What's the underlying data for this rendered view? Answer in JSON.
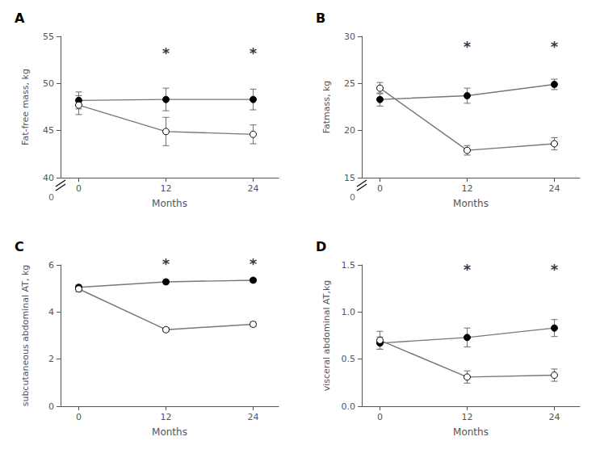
{
  "chart_data": [
    {
      "type": "line",
      "title": "A",
      "xlabel": "Months",
      "ylabel": "Fat-free mass, kg",
      "x": [
        0,
        12,
        24
      ],
      "xlim": [
        -2.5,
        27.5
      ],
      "xticks": [
        0,
        12,
        24
      ],
      "ylim": [
        40,
        55
      ],
      "yticks": [
        40,
        45,
        50,
        55
      ],
      "grid": false,
      "series": [
        {
          "color": "#777777",
          "marker": "filled_circle",
          "values": [
            48.2,
            48.3,
            48.3
          ],
          "errors": [
            0.9,
            1.2,
            1.1
          ]
        },
        {
          "color": "#777777",
          "marker": "open_circle",
          "values": [
            47.7,
            44.9,
            44.6
          ],
          "errors": [
            1.0,
            1.5,
            1.0
          ]
        }
      ],
      "annotations": [
        {
          "x": 12,
          "y": 52.5,
          "text": "*"
        },
        {
          "x": 24,
          "y": 52.5,
          "text": "*"
        },
        {
          "text": "0"
        }
      ]
    },
    {
      "type": "line",
      "title": "B",
      "xlabel": "Months",
      "ylabel": "Fatmass, kg",
      "x": [
        0,
        12,
        24
      ],
      "xlim": [
        -2.5,
        27.5
      ],
      "xticks": [
        0,
        12,
        24
      ],
      "ylim": [
        15,
        30
      ],
      "yticks": [
        15,
        20,
        25,
        30
      ],
      "grid": false,
      "series": [
        {
          "color": "#777777",
          "marker": "filled_circle",
          "values": [
            23.3,
            23.7,
            24.9
          ],
          "errors": [
            0.7,
            0.8,
            0.55
          ]
        },
        {
          "color": "#777777",
          "marker": "open_circle",
          "values": [
            24.5,
            17.9,
            18.6
          ],
          "errors": [
            0.6,
            0.5,
            0.65
          ]
        }
      ],
      "annotations": [
        {
          "x": 12,
          "y": 28.2,
          "text": "*"
        },
        {
          "x": 24,
          "y": 28.2,
          "text": "*"
        },
        {
          "text": "0"
        }
      ]
    },
    {
      "type": "line",
      "title": "C",
      "xlabel": "Months",
      "ylabel": "subcutaneous abdominal AT, kg",
      "x": [
        0,
        12,
        24
      ],
      "xlim": [
        -2.5,
        27.5
      ],
      "xticks": [
        0,
        12,
        24
      ],
      "ylim": [
        0.0,
        6.0
      ],
      "yticks": [
        0,
        2,
        4,
        6
      ],
      "grid": false,
      "series": [
        {
          "color": "#777777",
          "marker": "filled_circle",
          "values": [
            5.05,
            5.28,
            5.35
          ],
          "errors": [
            0.1,
            0.1,
            0.09
          ]
        },
        {
          "color": "#777777",
          "marker": "open_circle",
          "values": [
            4.98,
            3.25,
            3.48
          ],
          "errors": [
            0.12,
            0.09,
            0.1
          ]
        }
      ],
      "annotations": [
        {
          "x": 12,
          "y": 5.75,
          "text": "*"
        },
        {
          "x": 24,
          "y": 5.75,
          "text": "*"
        }
      ]
    },
    {
      "type": "line",
      "title": "D",
      "xlabel": "Months",
      "ylabel": "visceral abdominal AT,kg",
      "x": [
        0,
        12,
        24
      ],
      "xlim": [
        -2.5,
        27.5
      ],
      "xticks": [
        0,
        12,
        24
      ],
      "ylim": [
        0.0,
        1.5
      ],
      "yticks": [
        {
          "value": 0,
          "label": "0.0"
        },
        0.5,
        {
          "value": 1,
          "label": "1.0"
        },
        1.5
      ],
      "grid": false,
      "series": [
        {
          "color": "#777777",
          "marker": "filled_circle",
          "values": [
            0.67,
            0.73,
            0.83
          ],
          "errors": [
            0.065,
            0.1,
            0.09
          ]
        },
        {
          "color": "#777777",
          "marker": "open_circle",
          "values": [
            0.7,
            0.31,
            0.33
          ],
          "errors": [
            0.095,
            0.065,
            0.065
          ]
        }
      ],
      "annotations": [
        {
          "x": 12,
          "y": 1.38,
          "text": "*"
        },
        {
          "x": 24,
          "y": 1.38,
          "text": "*"
        }
      ]
    }
  ]
}
